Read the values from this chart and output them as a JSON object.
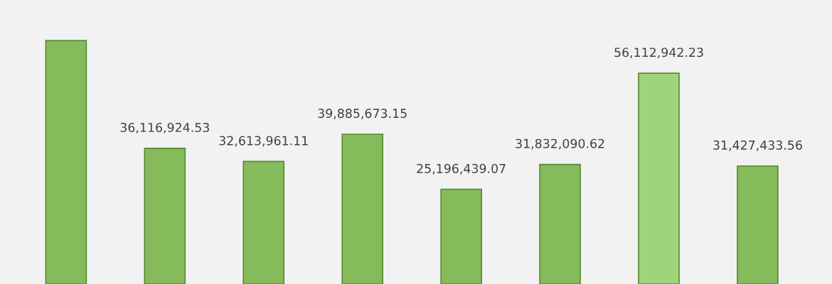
{
  "chart_data": {
    "type": "bar",
    "categories": [
      null,
      null,
      null,
      null,
      null,
      null,
      null,
      null
    ],
    "values": [
      64800000,
      36116924.53,
      32613961.11,
      39885673.15,
      25196439.07,
      31832090.62,
      56112942.23,
      31427433.56
    ],
    "value_labels": [
      null,
      "36,116,924.53",
      "32,613,961.11",
      "39,885,673.15",
      "25,196,439.07",
      "31,832,090.62",
      "56,112,942.23",
      "31,427,433.56"
    ],
    "colors": [
      "#86bb5b",
      "#86bb5b",
      "#86bb5b",
      "#86bb5b",
      "#86bb5b",
      "#86bb5b",
      "#a0d47a",
      "#86bb5b"
    ],
    "tick_labels": false,
    "grid": false,
    "legend": false
  }
}
